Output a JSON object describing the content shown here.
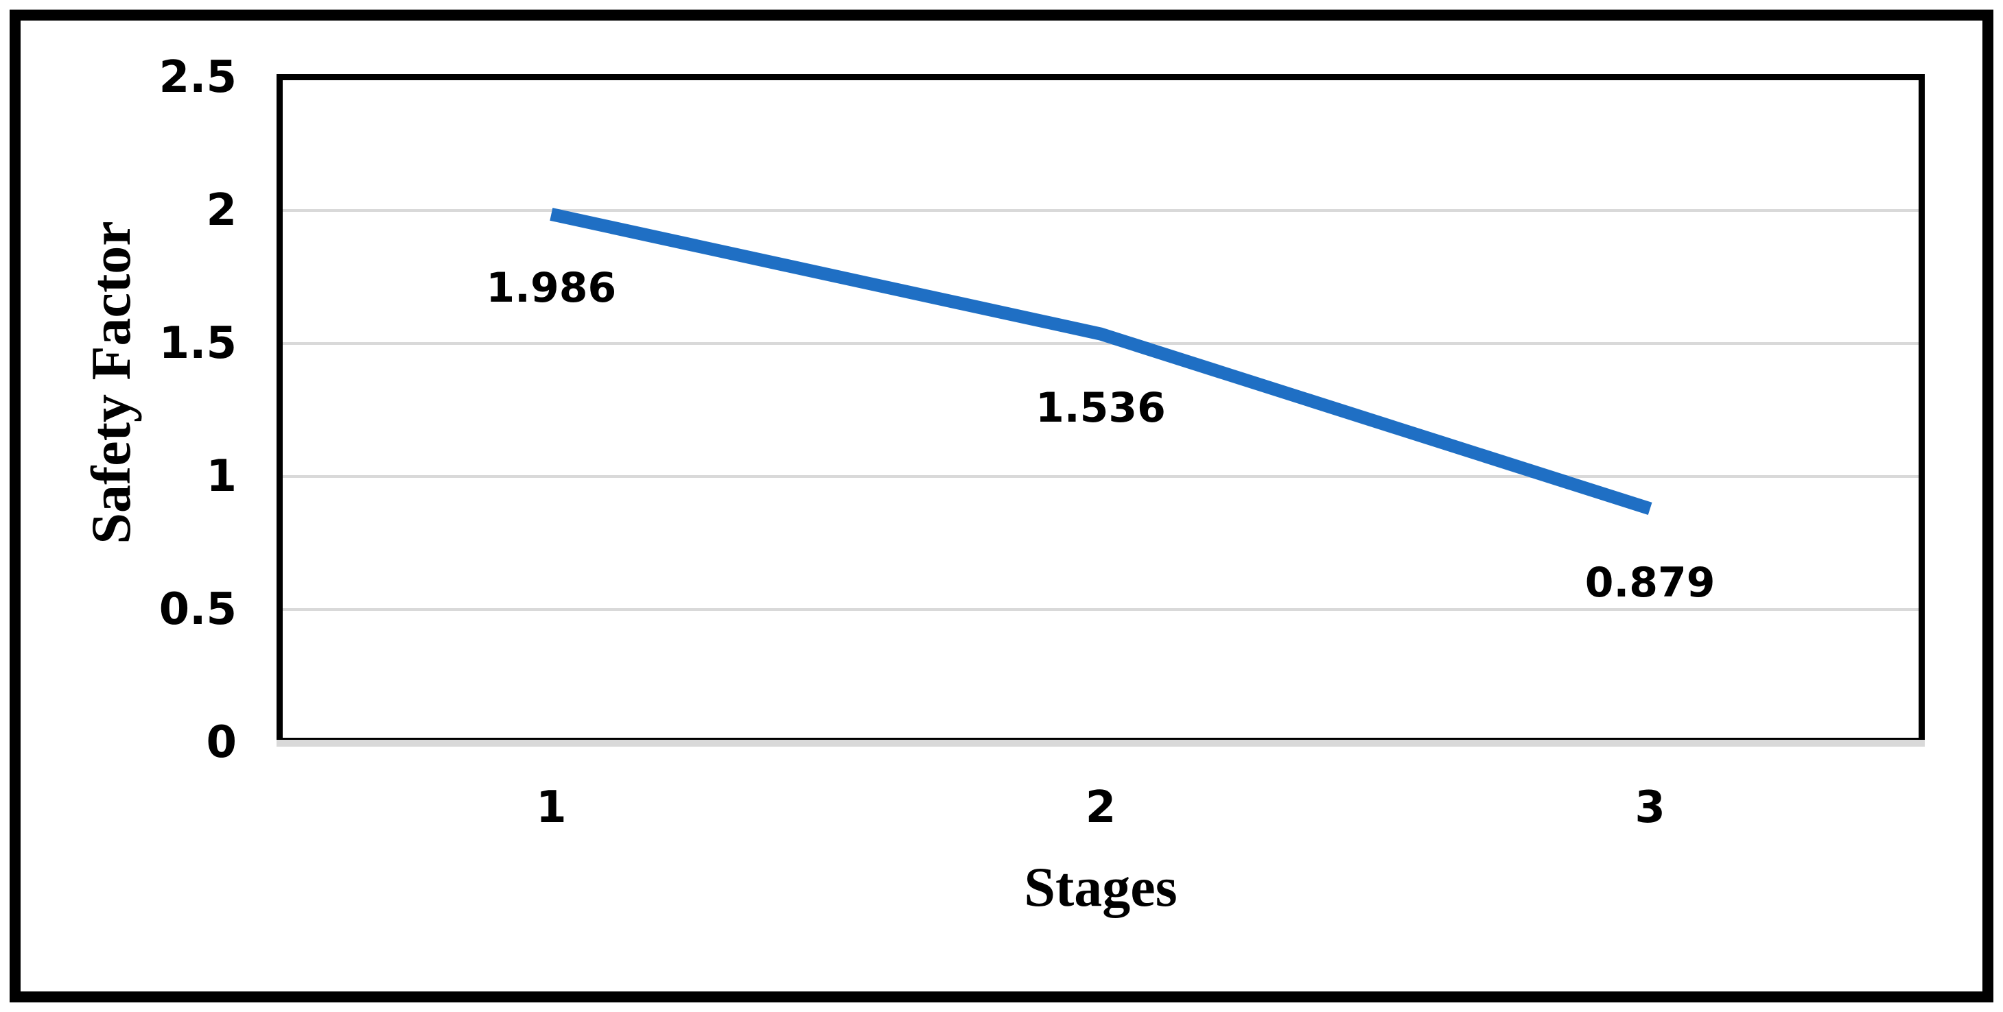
{
  "chart_data": {
    "type": "line",
    "title": "",
    "xlabel": "Stages",
    "ylabel": "Safety Factor",
    "categories": [
      "1",
      "2",
      "3"
    ],
    "series": [
      {
        "name": "Safety Factor",
        "values": [
          1.986,
          1.536,
          0.879
        ],
        "data_labels": [
          "1.986",
          "1.536",
          "0.879"
        ],
        "color": "#1F6FC4"
      }
    ],
    "ylim": [
      0,
      2.5
    ],
    "y_ticks": [
      {
        "value": 0,
        "label": "0"
      },
      {
        "value": 0.5,
        "label": "0.5"
      },
      {
        "value": 1,
        "label": "1"
      },
      {
        "value": 1.5,
        "label": "1.5"
      },
      {
        "value": 2,
        "label": "2"
      },
      {
        "value": 2.5,
        "label": "2.5"
      }
    ],
    "gridlines_at": [
      0.5,
      1.0,
      1.5,
      2.0
    ],
    "grid": true,
    "legend": "none",
    "gridline_color": "#D9D9D9",
    "axis_band_color": "#D9D9D9",
    "plot_border_color": "#000000",
    "frame_border_color": "#000000",
    "background": "#FFFFFF",
    "label_position": "below"
  }
}
